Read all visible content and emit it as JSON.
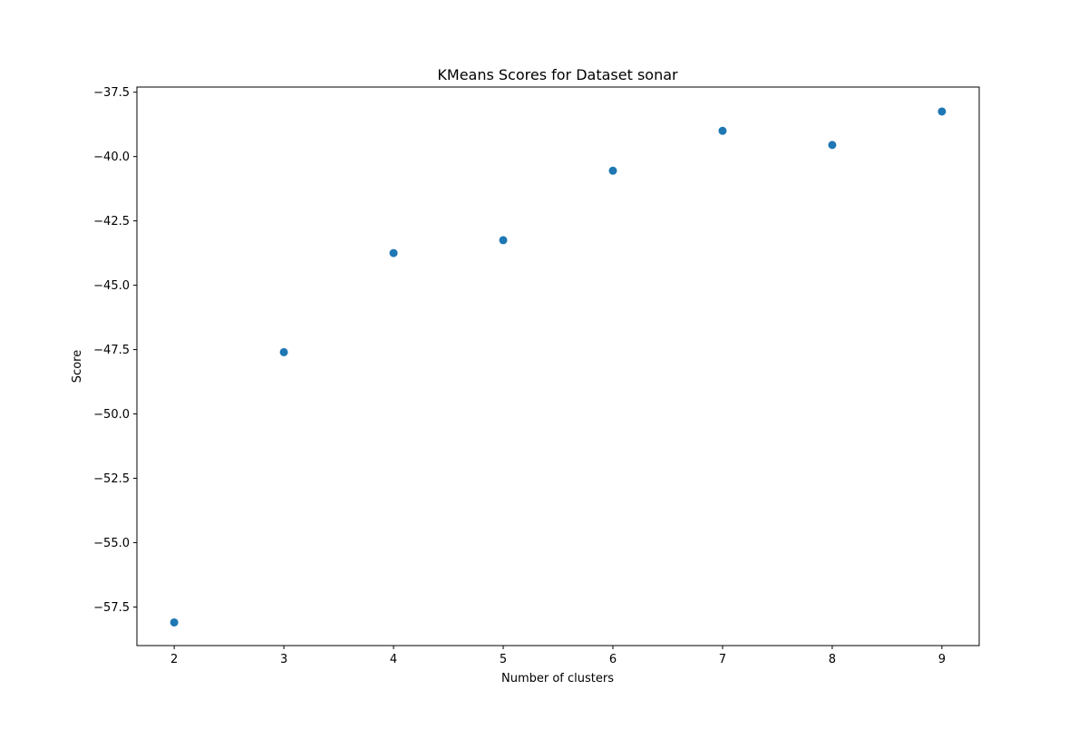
{
  "chart_data": {
    "type": "scatter",
    "title": "KMeans Scores for Dataset sonar",
    "xlabel": "Number of clusters",
    "ylabel": "Score",
    "x": [
      2,
      3,
      4,
      5,
      6,
      7,
      8,
      9
    ],
    "y": [
      -58.1,
      -47.6,
      -43.75,
      -43.25,
      -40.55,
      -39.0,
      -39.55,
      -38.25
    ],
    "xlim": [
      1.66,
      9.34
    ],
    "ylim": [
      -59.0,
      -37.3
    ],
    "xticks": [
      2,
      3,
      4,
      5,
      6,
      7,
      8,
      9
    ],
    "xtick_labels": [
      "2",
      "3",
      "4",
      "5",
      "6",
      "7",
      "8",
      "9"
    ],
    "yticks": [
      -57.5,
      -55.0,
      -52.5,
      -50.0,
      -47.5,
      -45.0,
      -42.5,
      -40.0,
      -37.5
    ],
    "ytick_labels": [
      "−57.5",
      "−55.0",
      "−52.5",
      "−50.0",
      "−47.5",
      "−45.0",
      "−42.5",
      "−40.0",
      "−37.5"
    ],
    "grid": false,
    "marker_color": "#1f77b4"
  }
}
